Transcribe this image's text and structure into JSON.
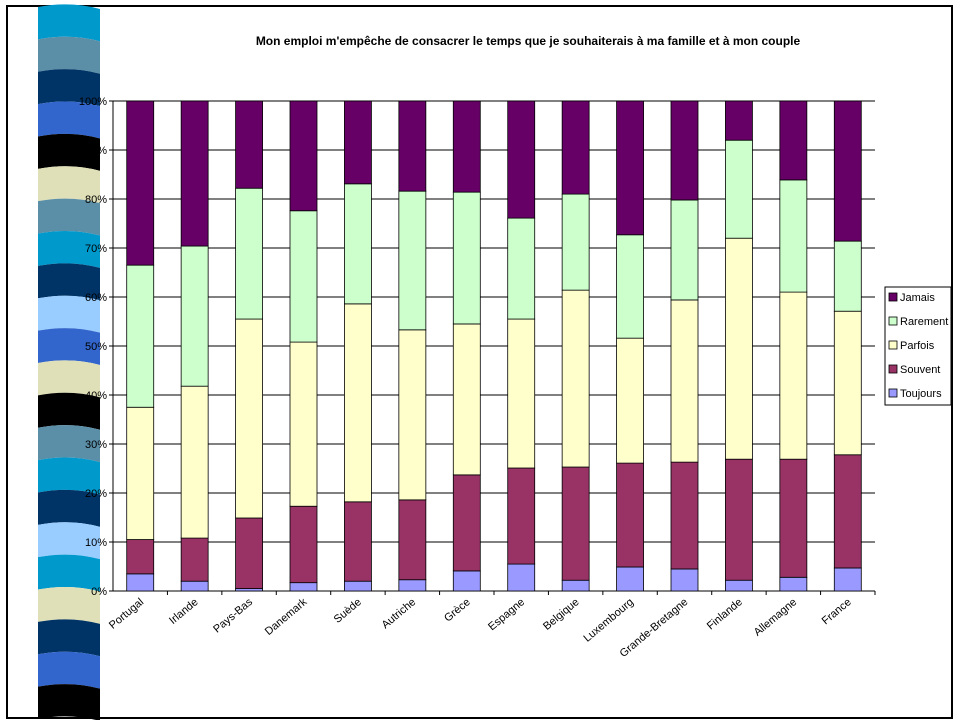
{
  "chart_data": {
    "type": "stacked-bar-100",
    "title": "Mon emploi m'empêche de consacrer le temps que je souhaiterais à ma famille et à mon couple",
    "categories": [
      "Portugal",
      "Irlande",
      "Pays-Bas",
      "Danemark",
      "Suède",
      "Autriche",
      "Grèce",
      "Espagne",
      "Belgique",
      "Luxembourg",
      "Grande-Bretagne",
      "Finlande",
      "Allemagne",
      "France"
    ],
    "series": [
      {
        "name": "Toujours",
        "color": "#9999ff",
        "values": [
          3.5,
          2,
          0.5,
          1.7,
          2,
          2.3,
          4.1,
          5.5,
          2.2,
          4.9,
          4.5,
          2.2,
          2.8,
          4.7
        ]
      },
      {
        "name": "Souvent",
        "color": "#993366",
        "values": [
          7,
          8.8,
          14.4,
          15.6,
          16.2,
          16.3,
          19.6,
          19.6,
          23.1,
          21.2,
          21.8,
          24.7,
          24.1,
          23.1
        ]
      },
      {
        "name": "Parfois",
        "color": "#ffffcc",
        "values": [
          27,
          31,
          40.6,
          33.5,
          40.4,
          34.7,
          30.8,
          30.4,
          36.1,
          25.5,
          33.1,
          45.1,
          34.1,
          29.3
        ]
      },
      {
        "name": "Rarement",
        "color": "#ccffcc",
        "values": [
          29,
          28.6,
          26.7,
          26.8,
          24.5,
          28.3,
          26.9,
          20.6,
          19.6,
          21.1,
          20.4,
          20,
          22.9,
          14.3
        ]
      },
      {
        "name": "Jamais",
        "color": "#660066",
        "values": [
          33.5,
          29.6,
          17.8,
          22.4,
          16.9,
          18.4,
          18.6,
          23.9,
          19,
          27.3,
          20.2,
          8,
          16.1,
          28.6
        ]
      }
    ],
    "ylim": [
      0,
      100
    ],
    "yticks": [
      {
        "value": 0,
        "label": "0%"
      },
      {
        "value": 10,
        "label": "10%"
      },
      {
        "value": 20,
        "label": "20%"
      },
      {
        "value": 30,
        "label": "30%"
      },
      {
        "value": 40,
        "label": "40%"
      },
      {
        "value": 50,
        "label": "50%"
      },
      {
        "value": 60,
        "label": "60%"
      },
      {
        "value": 70,
        "label": "70%"
      },
      {
        "value": 80,
        "label": "80%"
      },
      {
        "value": 90,
        "label": "90%"
      },
      {
        "value": 100,
        "label": "100%"
      }
    ],
    "grid": true,
    "legend": "right"
  }
}
